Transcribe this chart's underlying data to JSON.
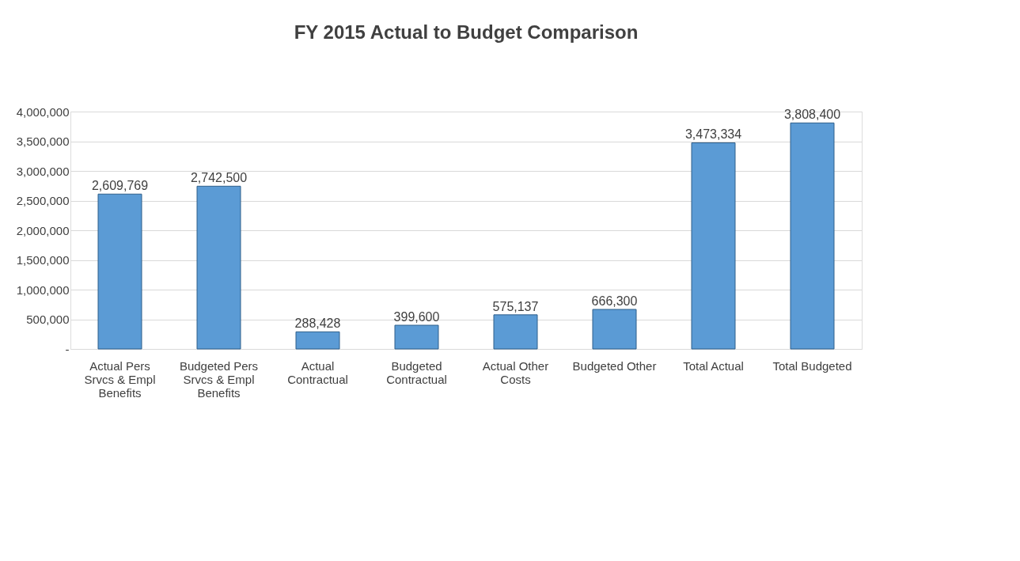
{
  "chart_data": {
    "type": "bar",
    "title": "FY 2015 Actual to Budget Comparison",
    "categories": [
      "Actual Pers Srvcs & Empl Benefits",
      "Budgeted Pers Srvcs & Empl Benefits",
      "Actual Contractual",
      "Budgeted Contractual",
      "Actual Other Costs",
      "Budgeted Other",
      "Total Actual",
      "Total Budgeted"
    ],
    "values": [
      2609769,
      2742500,
      288428,
      399600,
      575137,
      666300,
      3473334,
      3808400
    ],
    "color": "#5b9bd5",
    "ylim": [
      0,
      4000000
    ],
    "yticks": [
      {
        "value": 0,
        "label": "-"
      },
      {
        "value": 500000,
        "label": "500,000"
      },
      {
        "value": 1000000,
        "label": "1,000,000"
      },
      {
        "value": 1500000,
        "label": "1,500,000"
      },
      {
        "value": 2000000,
        "label": "2,000,000"
      },
      {
        "value": 2500000,
        "label": "2,500,000"
      },
      {
        "value": 3000000,
        "label": "3,000,000"
      },
      {
        "value": 3500000,
        "label": "3,500,000"
      },
      {
        "value": 4000000,
        "label": "4,000,000"
      }
    ],
    "value_labels": [
      "2,609,769",
      "2,742,500",
      "288,428",
      "399,600",
      "575,137",
      "666,300",
      "3,473,334",
      "3,808,400"
    ],
    "grid": "y"
  }
}
